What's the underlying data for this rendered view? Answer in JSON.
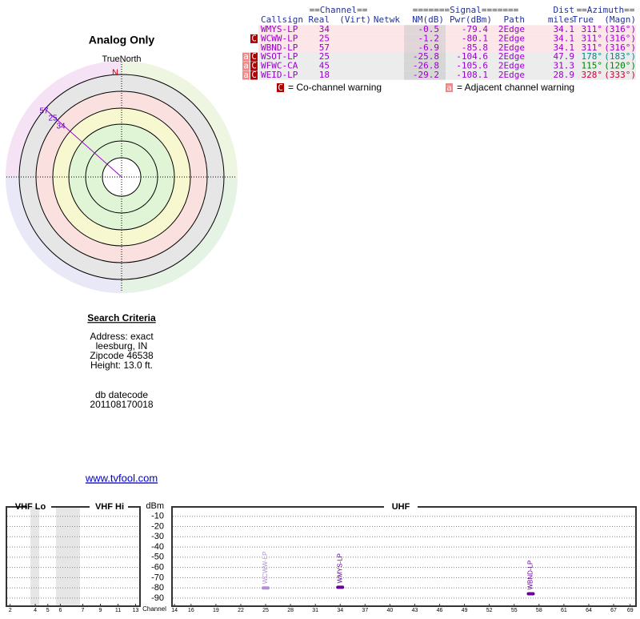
{
  "compass": {
    "title": "Analog Only",
    "north_label": "TrueNorth",
    "n_mark": "N",
    "ray_labels": [
      57,
      25,
      34
    ]
  },
  "table": {
    "header_top": [
      "==Channel==",
      "=======Signal=======",
      "Dist",
      "==Azimuth=="
    ],
    "header": [
      "Callsign",
      "Real",
      "(Virt)",
      "Netwk",
      "NM(dB)",
      "Pwr(dBm)",
      "Path",
      "miles",
      "True",
      "(Magn)"
    ],
    "rows": [
      {
        "warnings": [],
        "callsign": "WMYS-LP",
        "real": 34,
        "nm": -0.5,
        "pwr": -79.4,
        "path": "2Edge",
        "dist": 34.1,
        "az_true": "311°",
        "az_magn": "(316°)",
        "az_color": "#9900cc"
      },
      {
        "warnings": [
          "C"
        ],
        "callsign": "WCWW-LP",
        "real": 25,
        "nm": -1.2,
        "pwr": -80.1,
        "path": "2Edge",
        "dist": 34.1,
        "az_true": "311°",
        "az_magn": "(316°)",
        "az_color": "#9900cc"
      },
      {
        "warnings": [],
        "callsign": "WBND-LP",
        "real": 57,
        "nm": -6.9,
        "pwr": -85.8,
        "path": "2Edge",
        "dist": 34.1,
        "az_true": "311°",
        "az_magn": "(316°)",
        "az_color": "#9900cc"
      },
      {
        "warnings": [
          "a",
          "C"
        ],
        "callsign": "WSOT-LP",
        "real": 25,
        "nm": -25.8,
        "pwr": -104.6,
        "path": "2Edge",
        "dist": 47.9,
        "az_true": "178°",
        "az_magn": "(183°)",
        "az_color": "#008b8b"
      },
      {
        "warnings": [
          "a",
          "C"
        ],
        "callsign": "WFWC-CA",
        "real": 45,
        "nm": -26.8,
        "pwr": -105.6,
        "path": "2Edge",
        "dist": 31.3,
        "az_true": "115°",
        "az_magn": "(120°)",
        "az_color": "#008000"
      },
      {
        "warnings": [
          "a",
          "C"
        ],
        "callsign": "WEID-LP",
        "real": 18,
        "nm": -29.2,
        "pwr": -108.1,
        "path": "2Edge",
        "dist": 28.9,
        "az_true": "328°",
        "az_magn": "(333°)",
        "az_color": "#cc0033"
      }
    ],
    "legend": [
      {
        "symbol": "C",
        "text": "= Co-channel warning"
      },
      {
        "symbol": "a",
        "text": "= Adjacent channel warning"
      }
    ]
  },
  "search": {
    "title": "Search Criteria",
    "lines": [
      "Address: exact",
      "leesburg, IN",
      "Zipcode 46538",
      "Height: 13.0 ft."
    ],
    "datecode_label": "db datecode",
    "datecode": "201108170018",
    "link": "www.tvfool.com"
  },
  "chart_data": {
    "type": "spectrum",
    "ylabel": "dBm",
    "xlabel": "Channel",
    "ylim": [
      -94,
      0
    ],
    "yticks": [
      -10,
      -20,
      -30,
      -40,
      -50,
      -60,
      -70,
      -80,
      -90
    ],
    "grid": true,
    "panels": [
      {
        "name": "VHF Lo",
        "xlim": [
          1.7,
          6.8
        ],
        "xticks": [
          2,
          4,
          5,
          6
        ]
      },
      {
        "name": "VHF Hi",
        "xlim": [
          6.5,
          13.5
        ],
        "xticks": [
          7,
          9,
          11,
          13
        ]
      },
      {
        "name": "UHF",
        "xlim": [
          13.7,
          69.7
        ],
        "xticks": [
          14,
          16,
          19,
          22,
          25,
          28,
          31,
          34,
          37,
          40,
          43,
          46,
          49,
          52,
          55,
          58,
          61,
          64,
          67,
          69
        ]
      }
    ],
    "series": {
      "panel": "UHF",
      "x": [
        25,
        34,
        57
      ],
      "values": [
        -80.1,
        -79.4,
        -85.8
      ],
      "labels": [
        "WCWW-LP",
        "WMYS-LP",
        "WBND-LP"
      ],
      "colors": [
        "#b48fd8",
        "#660099",
        "#660099"
      ]
    }
  }
}
